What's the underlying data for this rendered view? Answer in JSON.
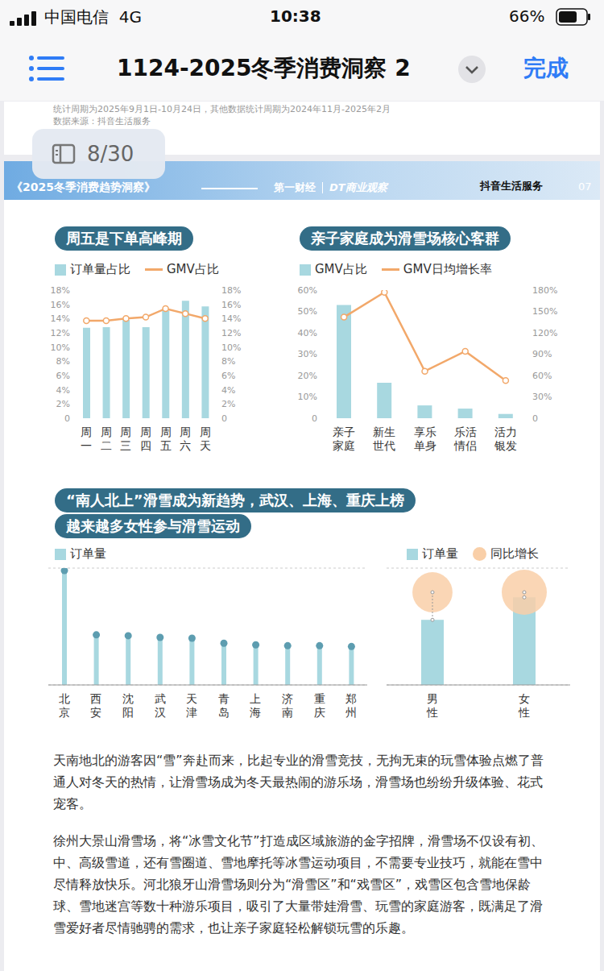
{
  "status_bar": {
    "carrier": "中国电信",
    "network": "4G",
    "time": "10:38",
    "battery": "66%"
  },
  "nav_bar": {
    "title": "1124-2025冬季消费洞察 2",
    "done": "完成"
  },
  "page_indicator": "8/30",
  "previous_page_note": [
    "统计周期为2025年9月1日-10月24日，其他数据统计周期为2024年11月-2025年2月",
    "数据来源：抖音生活服务"
  ],
  "page_header": {
    "report": "《2025冬季消费趋势洞察》",
    "logos": [
      "第一财经",
      "DT商业观察",
      "抖音生活服务"
    ],
    "page": "07"
  },
  "chart_data": [
    {
      "type": "bar",
      "title": "周五是下单高峰期",
      "categories": [
        "周一",
        "周二",
        "周三",
        "周四",
        "周五",
        "周六",
        "周天"
      ],
      "series": [
        {
          "name": "订单量占比",
          "type": "bar",
          "color": "#a8d8e0",
          "values": [
            12.7,
            12.8,
            13.8,
            12.8,
            15.1,
            16.5,
            15.7
          ]
        },
        {
          "name": "GMV占比",
          "type": "line",
          "color": "#f2a86a",
          "marker": "circle",
          "axis": "y2",
          "values": [
            13.7,
            13.7,
            14.0,
            14.2,
            15.4,
            14.7,
            14.0
          ]
        }
      ],
      "ylim": [
        0,
        18
      ],
      "yticks": [
        0,
        {
          "value": 2,
          "label": "2%"
        },
        {
          "value": 4,
          "label": "4%"
        },
        {
          "value": 6,
          "label": "6%"
        },
        {
          "value": 8,
          "label": "8%"
        },
        {
          "value": 10,
          "label": "10%"
        },
        {
          "value": 12,
          "label": "12%"
        },
        {
          "value": 14,
          "label": "14%"
        },
        {
          "value": 16,
          "label": "16%"
        },
        {
          "value": 18,
          "label": "18%"
        }
      ],
      "y2lim": [
        0,
        18
      ],
      "y2ticks": [
        0,
        {
          "value": 2,
          "label": "2%"
        },
        {
          "value": 4,
          "label": "4%"
        },
        {
          "value": 6,
          "label": "6%"
        },
        {
          "value": 8,
          "label": "8%"
        },
        {
          "value": 10,
          "label": "10%"
        },
        {
          "value": 12,
          "label": "12%"
        },
        {
          "value": 14,
          "label": "14%"
        },
        {
          "value": 16,
          "label": "16%"
        },
        {
          "value": 18,
          "label": "18%"
        }
      ],
      "grid": false,
      "legend": "top left"
    },
    {
      "type": "bar",
      "title": "亲子家庭成为滑雪场核心客群",
      "categories": [
        "亲子家庭",
        "新生世代",
        "享乐单身",
        "乐活情侣",
        "活力银发"
      ],
      "series": [
        {
          "name": "GMV占比",
          "type": "bar",
          "color": "#a8d8e0",
          "values": [
            53,
            16.6,
            6,
            4.5,
            2
          ]
        },
        {
          "name": "GMV日均增长率",
          "type": "line",
          "color": "#f2a86a",
          "marker": "circle",
          "axis": "y2",
          "values": [
            142,
            177,
            66,
            94,
            53
          ]
        }
      ],
      "ylim": [
        0,
        60
      ],
      "yticks": [
        0,
        {
          "value": 10,
          "label": "10%"
        },
        {
          "value": 20,
          "label": "20%"
        },
        {
          "value": 30,
          "label": "30%"
        },
        {
          "value": 40,
          "label": "40%"
        },
        {
          "value": 50,
          "label": "50%"
        },
        {
          "value": 60,
          "label": "60%"
        }
      ],
      "y2lim": [
        0,
        180
      ],
      "y2ticks": [
        0,
        {
          "value": 30,
          "label": "30%"
        },
        {
          "value": 60,
          "label": "60%"
        },
        {
          "value": 90,
          "label": "90%"
        },
        {
          "value": 120,
          "label": "120%"
        },
        {
          "value": 150,
          "label": "150%"
        },
        {
          "value": 180,
          "label": "180%"
        }
      ],
      "grid": false,
      "legend": "top left"
    },
    {
      "type": "bar",
      "title": "“南人北上”滑雪成为新趋势，武汉、上海、重庆上榜",
      "subtitle": "越来越多女性参与滑雪运动",
      "categories": [
        "北京",
        "西安",
        "沈阳",
        "武汉",
        "天津",
        "青岛",
        "上海",
        "济南",
        "重庆",
        "郑州"
      ],
      "series": [
        {
          "name": "订单量",
          "type": "bar",
          "color": "#a8d8e0",
          "marker": "circle",
          "values": [
            137,
            60,
            59,
            57,
            56,
            50,
            48,
            47,
            47,
            46
          ]
        }
      ],
      "ylim": [
        0,
        140
      ],
      "yticks": [
        0,
        28,
        56,
        84,
        112,
        140
      ],
      "grid": true,
      "tick_labels": false,
      "legend": "top left"
    },
    {
      "type": "bar",
      "categories": [
        "男性",
        "女性"
      ],
      "series": [
        {
          "name": "订单量",
          "type": "bar",
          "color": "#a8d8e0",
          "values": [
            78,
            105
          ]
        },
        {
          "name": "同比增长",
          "type": "bubble",
          "color": "#f9cfa8",
          "values": [
            89,
            100
          ]
        }
      ],
      "ylim": [
        0,
        140
      ],
      "yticks": [
        0,
        28,
        56,
        84,
        112,
        140
      ],
      "grid": true,
      "tick_labels": false,
      "legend": "top"
    }
  ],
  "paragraphs": [
    "天南地北的游客因“雪”奔赴而来，比起专业的滑雪竞技，无拘无束的玩雪体验点燃了普通人对冬天的热情，让滑雪场成为冬天最热闹的游乐场，滑雪场也纷纷升级体验、花式宠客。",
    "徐州大景山滑雪场，将“冰雪文化节”打造成区域旅游的金字招牌，滑雪场不仅设有初、中、高级雪道，还有雪圈道、雪地摩托等冰雪运动项目，不需要专业技巧，就能在雪中尽情释放快乐。河北狼牙山滑雪场则分为“滑雪区”和“戏雪区”，戏雪区包含雪地保龄球、雪地迷宫等数十种游乐项目，吸引了大量带娃滑雪、玩雪的家庭游客，既满足了滑雪爱好者尽情驰骋的需求，也让亲子家庭轻松解锁玩雪的乐趣。"
  ]
}
